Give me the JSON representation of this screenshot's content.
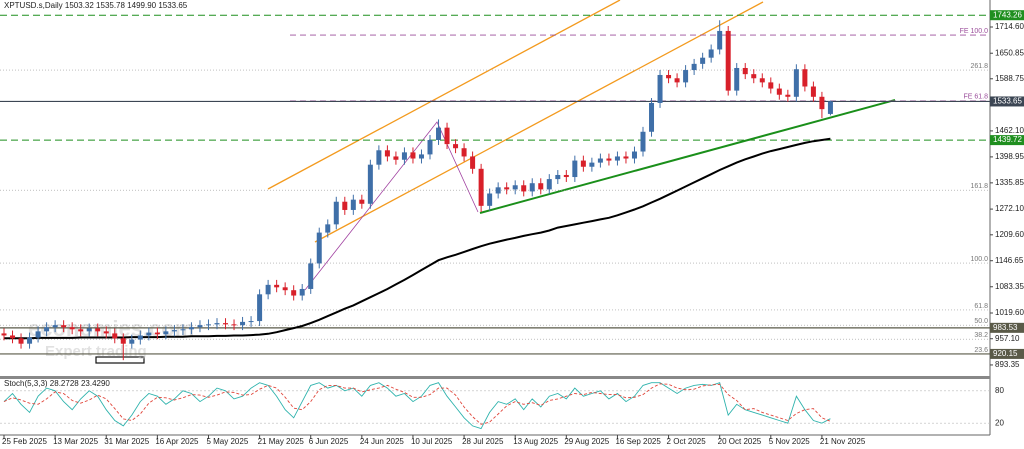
{
  "chart_data": {
    "type": "candlestick",
    "title": "XPTUSD.s,Daily 1503.32 1535.78 1499.90 1533.65",
    "categories": [
      "25 Feb 2025",
      null,
      null,
      null,
      null,
      null,
      "13 Mar 2025",
      null,
      null,
      null,
      null,
      null,
      "31 Mar 2025",
      null,
      null,
      null,
      null,
      null,
      "16 Apr 2025",
      null,
      null,
      null,
      null,
      null,
      "5 May 2025",
      null,
      null,
      null,
      null,
      null,
      "21 May 2025",
      null,
      null,
      null,
      null,
      null,
      "6 Jun 2025",
      null,
      null,
      null,
      null,
      null,
      "24 Jun 2025",
      null,
      null,
      null,
      null,
      null,
      "10 Jul 2025",
      null,
      null,
      null,
      null,
      null,
      "28 Jul 2025",
      null,
      null,
      null,
      null,
      null,
      "13 Aug 2025",
      null,
      null,
      null,
      null,
      null,
      "29 Aug 2025",
      null,
      null,
      null,
      null,
      null,
      "16 Sep 2025",
      null,
      null,
      null,
      null,
      null,
      "2 Oct 2025",
      null,
      null,
      null,
      null,
      null,
      "20 Oct 2025",
      null,
      null,
      null,
      null,
      null,
      "5 Nov 2025",
      null,
      null,
      null,
      null,
      null,
      "21 Nov 2025",
      null
    ],
    "open": [
      970,
      965,
      958,
      945,
      960,
      975,
      985,
      990,
      985,
      980,
      975,
      982,
      975,
      970,
      958,
      945,
      955,
      965,
      972,
      968,
      975,
      978,
      980,
      985,
      990,
      992,
      995,
      992,
      990,
      998,
      1000,
      1065,
      1088,
      1082,
      1075,
      1062,
      1078,
      1140,
      1215,
      1235,
      1290,
      1270,
      1295,
      1285,
      1380,
      1415,
      1400,
      1392,
      1410,
      1395,
      1405,
      1440,
      1470,
      1430,
      1420,
      1400,
      1370,
      1280,
      1310,
      1325,
      1320,
      1330,
      1315,
      1335,
      1320,
      1345,
      1355,
      1350,
      1390,
      1375,
      1385,
      1395,
      1390,
      1400,
      1395,
      1412,
      1460,
      1530,
      1598,
      1590,
      1580,
      1610,
      1625,
      1640,
      1660,
      1705,
      1560,
      1615,
      1600,
      1590,
      1580,
      1565,
      1550,
      1545,
      1612,
      1570,
      1545,
      1503.32
    ],
    "high": [
      982,
      977,
      970,
      972,
      987,
      997,
      1002,
      1002,
      997,
      992,
      994,
      994,
      987,
      982,
      970,
      967,
      977,
      984,
      984,
      987,
      990,
      992,
      997,
      1002,
      1004,
      1007,
      1007,
      1004,
      1010,
      1012,
      1077,
      1100,
      1100,
      1094,
      1087,
      1090,
      1152,
      1227,
      1247,
      1302,
      1302,
      1307,
      1307,
      1392,
      1427,
      1427,
      1412,
      1422,
      1422,
      1417,
      1452,
      1490,
      1482,
      1442,
      1432,
      1412,
      1382,
      1322,
      1337,
      1337,
      1342,
      1342,
      1347,
      1347,
      1357,
      1367,
      1367,
      1402,
      1402,
      1397,
      1407,
      1407,
      1412,
      1412,
      1424,
      1472,
      1542,
      1610,
      1610,
      1602,
      1622,
      1637,
      1652,
      1672,
      1731,
      1717,
      1627,
      1627,
      1612,
      1602,
      1592,
      1577,
      1562,
      1624,
      1624,
      1582,
      1557,
      1535.78
    ],
    "low": [
      953,
      946,
      933,
      933,
      948,
      963,
      973,
      973,
      968,
      963,
      963,
      963,
      958,
      946,
      905,
      933,
      943,
      953,
      956,
      956,
      963,
      966,
      968,
      973,
      978,
      980,
      980,
      978,
      978,
      986,
      988,
      1053,
      1070,
      1063,
      1050,
      1050,
      1066,
      1128,
      1203,
      1223,
      1258,
      1258,
      1273,
      1273,
      1368,
      1388,
      1380,
      1380,
      1383,
      1383,
      1393,
      1428,
      1418,
      1408,
      1388,
      1358,
      1265,
      1268,
      1298,
      1308,
      1308,
      1303,
      1303,
      1308,
      1308,
      1333,
      1338,
      1338,
      1363,
      1363,
      1373,
      1378,
      1378,
      1383,
      1383,
      1400,
      1448,
      1518,
      1578,
      1568,
      1568,
      1598,
      1613,
      1628,
      1648,
      1548,
      1548,
      1588,
      1578,
      1568,
      1553,
      1538,
      1533,
      1533,
      1558,
      1533,
      1493,
      1499.9
    ],
    "close": [
      965,
      958,
      945,
      960,
      975,
      985,
      990,
      985,
      980,
      975,
      982,
      975,
      970,
      958,
      945,
      955,
      965,
      972,
      968,
      975,
      978,
      980,
      985,
      990,
      992,
      995,
      992,
      990,
      998,
      1000,
      1065,
      1088,
      1082,
      1075,
      1062,
      1078,
      1140,
      1215,
      1235,
      1290,
      1270,
      1295,
      1285,
      1380,
      1415,
      1400,
      1392,
      1410,
      1395,
      1405,
      1440,
      1470,
      1430,
      1420,
      1400,
      1370,
      1280,
      1310,
      1325,
      1320,
      1330,
      1315,
      1335,
      1320,
      1345,
      1355,
      1350,
      1390,
      1375,
      1385,
      1395,
      1390,
      1400,
      1395,
      1412,
      1460,
      1530,
      1598,
      1590,
      1580,
      1610,
      1625,
      1640,
      1660,
      1705,
      1560,
      1615,
      1600,
      1590,
      1580,
      1565,
      1550,
      1545,
      1612,
      1570,
      1545,
      1515,
      1533.65
    ],
    "up_color": "#3f6fa8",
    "down_color": "#d8202a",
    "ylim": [
      866.5,
      1780.2
    ],
    "yticks": [
      {
        "value": 1714.6,
        "label": "1714.60"
      },
      1650.85,
      1588.75,
      {
        "value": 1462.1,
        "label": "1462.10"
      },
      1398.95,
      1335.85,
      {
        "value": 1272.1,
        "label": "1272.10"
      },
      {
        "value": 1209.6,
        "label": "1209.60"
      },
      1146.65,
      1083.35,
      {
        "value": 1019.6,
        "label": "1019.60"
      },
      {
        "value": 957.1,
        "label": "957.10"
      },
      893.35
    ],
    "moving_average": {
      "color": "#000000",
      "values": [
        958,
        958,
        958,
        958,
        959,
        959,
        959,
        959,
        959,
        960,
        960,
        960,
        960,
        960,
        960,
        961,
        961,
        961,
        961,
        962,
        962,
        962,
        963,
        963,
        963,
        964,
        964,
        965,
        965,
        966,
        967,
        969,
        973,
        978,
        983,
        988,
        995,
        1003,
        1012,
        1021,
        1030,
        1038,
        1048,
        1058,
        1068,
        1078,
        1089,
        1100,
        1112,
        1124,
        1136,
        1148,
        1155,
        1161,
        1168,
        1175,
        1182,
        1188,
        1193,
        1198,
        1202,
        1207,
        1211,
        1215,
        1220,
        1227,
        1231,
        1235,
        1239,
        1243,
        1247,
        1251,
        1257,
        1264,
        1271,
        1279,
        1288,
        1297,
        1307,
        1317,
        1327,
        1337,
        1347,
        1357,
        1367,
        1376,
        1385,
        1393,
        1400,
        1407,
        1413,
        1418,
        1423,
        1428,
        1433,
        1437,
        1440,
        1443
      ]
    },
    "levels": [
      {
        "value": 1743.26,
        "color": "#1f8f1f",
        "dashed": true
      },
      {
        "value": 1533.65,
        "color": "#3c4654",
        "dashed": false
      },
      {
        "value": 1439.72,
        "color": "#1f8f1f",
        "dashed": true
      },
      {
        "value": 983.53,
        "color": "#5a5a48",
        "dashed": false
      },
      {
        "value": 920.15,
        "color": "#5a5a48",
        "dashed": false
      }
    ],
    "fe_levels": [
      {
        "label": "FE 100.0",
        "value": 1695
      },
      {
        "label": "FE 61.8",
        "value": 1535
      }
    ],
    "fib_levels": [
      {
        "label": "261.8",
        "value": 1610
      },
      {
        "label": "161.8",
        "value": 1318
      },
      {
        "label": "100.0",
        "value": 1141
      },
      {
        "label": "61.8",
        "value": 1027
      },
      {
        "label": "50.0",
        "value": 990
      },
      {
        "label": "38.2",
        "value": 956
      },
      {
        "label": "23.6",
        "value": 920
      }
    ],
    "watermark": [
      "economies.com",
      "Expert trading"
    ],
    "indicator": {
      "type": "line",
      "title": "Stoch(5,3,3) 28.2728 23.4290",
      "ylim": [
        0,
        100
      ],
      "yticks": [
        80,
        20
      ],
      "series": [
        {
          "color": "#2fb3ad",
          "dashed": false,
          "values": [
            60,
            75,
            55,
            40,
            70,
            85,
            80,
            60,
            45,
            65,
            80,
            70,
            45,
            25,
            15,
            35,
            60,
            75,
            70,
            55,
            65,
            80,
            75,
            60,
            70,
            85,
            80,
            65,
            70,
            85,
            95,
            90,
            70,
            45,
            30,
            60,
            90,
            95,
            85,
            90,
            80,
            85,
            70,
            90,
            95,
            85,
            70,
            75,
            60,
            70,
            90,
            95,
            70,
            50,
            30,
            15,
            10,
            40,
            60,
            55,
            65,
            45,
            65,
            50,
            70,
            75,
            65,
            85,
            70,
            75,
            80,
            65,
            75,
            60,
            70,
            90,
            95,
            95,
            85,
            75,
            85,
            90,
            92,
            90,
            95,
            35,
            55,
            45,
            40,
            35,
            30,
            25,
            20,
            70,
            45,
            25,
            20,
            28.2728
          ]
        },
        {
          "color": "#e0453a",
          "dashed": true,
          "values": [
            60,
            67,
            63,
            57,
            55,
            65,
            78,
            75,
            62,
            57,
            63,
            72,
            65,
            47,
            28,
            25,
            37,
            57,
            68,
            67,
            63,
            67,
            73,
            72,
            68,
            72,
            78,
            77,
            72,
            73,
            83,
            90,
            85,
            68,
            48,
            45,
            60,
            82,
            90,
            90,
            85,
            85,
            78,
            82,
            85,
            90,
            83,
            77,
            68,
            68,
            73,
            85,
            85,
            72,
            50,
            32,
            18,
            22,
            37,
            52,
            60,
            55,
            58,
            53,
            62,
            65,
            70,
            75,
            73,
            77,
            75,
            73,
            73,
            67,
            68,
            73,
            85,
            93,
            92,
            85,
            82,
            83,
            89,
            91,
            92,
            73,
            62,
            45,
            47,
            40,
            35,
            30,
            25,
            38,
            45,
            47,
            30,
            23.429
          ]
        }
      ]
    }
  }
}
